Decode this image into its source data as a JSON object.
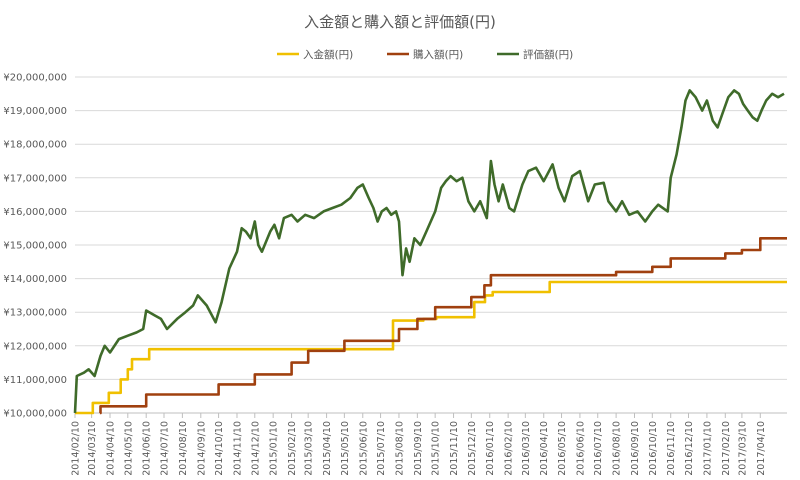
{
  "chart_data": {
    "type": "line",
    "title": "入金額と購入額と評価額(円)",
    "legend_position": "top",
    "grid": true,
    "ylim": [
      10000000,
      20000000
    ],
    "yticks": [
      {
        "value": 10000000,
        "label": "¥10,000,000"
      },
      {
        "value": 11000000,
        "label": "¥11,000,000"
      },
      {
        "value": 12000000,
        "label": "¥12,000,000"
      },
      {
        "value": 13000000,
        "label": "¥13,000,000"
      },
      {
        "value": 14000000,
        "label": "¥14,000,000"
      },
      {
        "value": 15000000,
        "label": "¥15,000,000"
      },
      {
        "value": 16000000,
        "label": "¥16,000,000"
      },
      {
        "value": 17000000,
        "label": "¥17,000,000"
      },
      {
        "value": 18000000,
        "label": "¥18,000,000"
      },
      {
        "value": 19000000,
        "label": "¥19,000,000"
      },
      {
        "value": 20000000,
        "label": "¥20,000,000"
      }
    ],
    "xlim": [
      "2014/02/10",
      "2017/05/25"
    ],
    "xticks": [
      "2014/02/10",
      "2014/03/10",
      "2014/04/10",
      "2014/05/10",
      "2014/06/10",
      "2014/07/10",
      "2014/08/10",
      "2014/09/10",
      "2014/10/10",
      "2014/11/10",
      "2014/12/10",
      "2015/01/10",
      "2015/02/10",
      "2015/03/10",
      "2015/04/10",
      "2015/05/10",
      "2015/06/10",
      "2015/07/10",
      "2015/08/10",
      "2015/09/10",
      "2015/10/10",
      "2015/11/10",
      "2015/12/10",
      "2016/01/10",
      "2016/02/10",
      "2016/03/10",
      "2016/04/10",
      "2016/05/10",
      "2016/06/10",
      "2016/07/10",
      "2016/08/10",
      "2016/09/10",
      "2016/10/10",
      "2016/11/10",
      "2016/12/10",
      "2017/01/10",
      "2017/02/10",
      "2017/03/10",
      "2017/04/10"
    ],
    "series": [
      {
        "name": "入金額(円)",
        "color": "#f0c000",
        "step": true,
        "points": [
          [
            "2014/02/10",
            10000000
          ],
          [
            "2014/03/12",
            10300000
          ],
          [
            "2014/04/08",
            10600000
          ],
          [
            "2014/04/28",
            11000000
          ],
          [
            "2014/05/10",
            11300000
          ],
          [
            "2014/05/17",
            11600000
          ],
          [
            "2014/06/15",
            11900000
          ],
          [
            "2015/07/31",
            12750000
          ],
          [
            "2015/09/20",
            12800000
          ],
          [
            "2015/10/12",
            12850000
          ],
          [
            "2015/12/15",
            13300000
          ],
          [
            "2016/01/02",
            13500000
          ],
          [
            "2016/01/15",
            13600000
          ],
          [
            "2016/04/20",
            13900000
          ],
          [
            "2017/05/25",
            13900000
          ]
        ]
      },
      {
        "name": "購入額(円)",
        "color": "#a0400f",
        "step": true,
        "points": [
          [
            "2014/03/24",
            10000000
          ],
          [
            "2014/03/25",
            10200000
          ],
          [
            "2014/06/10",
            10550000
          ],
          [
            "2014/10/10",
            10850000
          ],
          [
            "2014/12/10",
            11150000
          ],
          [
            "2015/02/10",
            11500000
          ],
          [
            "2015/03/10",
            11850000
          ],
          [
            "2015/05/10",
            12150000
          ],
          [
            "2015/08/10",
            12500000
          ],
          [
            "2015/09/10",
            12800000
          ],
          [
            "2015/10/10",
            13150000
          ],
          [
            "2015/12/10",
            13450000
          ],
          [
            "2016/01/01",
            13800000
          ],
          [
            "2016/01/12",
            14100000
          ],
          [
            "2016/08/10",
            14200000
          ],
          [
            "2016/10/10",
            14350000
          ],
          [
            "2016/11/10",
            14600000
          ],
          [
            "2017/02/10",
            14750000
          ],
          [
            "2017/03/10",
            14850000
          ],
          [
            "2017/04/10",
            15200000
          ],
          [
            "2017/05/25",
            15200000
          ]
        ]
      },
      {
        "name": "評価額(円)",
        "color": "#3f6b2a",
        "step": false,
        "points": [
          [
            "2014/02/10",
            10000000
          ],
          [
            "2014/02/13",
            11100000
          ],
          [
            "2014/02/25",
            11200000
          ],
          [
            "2014/03/05",
            11300000
          ],
          [
            "2014/03/15",
            11100000
          ],
          [
            "2014/03/25",
            11700000
          ],
          [
            "2014/04/01",
            12000000
          ],
          [
            "2014/04/10",
            11800000
          ],
          [
            "2014/04/25",
            12200000
          ],
          [
            "2014/05/10",
            12300000
          ],
          [
            "2014/05/25",
            12400000
          ],
          [
            "2014/06/05",
            12500000
          ],
          [
            "2014/06/10",
            13050000
          ],
          [
            "2014/06/25",
            12900000
          ],
          [
            "2014/07/05",
            12800000
          ],
          [
            "2014/07/15",
            12500000
          ],
          [
            "2014/08/01",
            12800000
          ],
          [
            "2014/08/15",
            13000000
          ],
          [
            "2014/08/28",
            13200000
          ],
          [
            "2014/09/05",
            13500000
          ],
          [
            "2014/09/20",
            13200000
          ],
          [
            "2014/10/05",
            12700000
          ],
          [
            "2014/10/15",
            13300000
          ],
          [
            "2014/10/28",
            14300000
          ],
          [
            "2014/11/10",
            14800000
          ],
          [
            "2014/11/18",
            15500000
          ],
          [
            "2014/11/25",
            15400000
          ],
          [
            "2014/12/03",
            15200000
          ],
          [
            "2014/12/10",
            15700000
          ],
          [
            "2014/12/16",
            15000000
          ],
          [
            "2014/12/22",
            14800000
          ],
          [
            "2015/01/05",
            15400000
          ],
          [
            "2015/01/12",
            15600000
          ],
          [
            "2015/01/20",
            15200000
          ],
          [
            "2015/01/28",
            15800000
          ],
          [
            "2015/02/10",
            15900000
          ],
          [
            "2015/02/20",
            15700000
          ],
          [
            "2015/03/05",
            15900000
          ],
          [
            "2015/03/20",
            15800000
          ],
          [
            "2015/04/05",
            16000000
          ],
          [
            "2015/04/20",
            16100000
          ],
          [
            "2015/05/05",
            16200000
          ],
          [
            "2015/05/20",
            16400000
          ],
          [
            "2015/06/01",
            16700000
          ],
          [
            "2015/06/10",
            16800000
          ],
          [
            "2015/06/20",
            16400000
          ],
          [
            "2015/06/28",
            16100000
          ],
          [
            "2015/07/05",
            15700000
          ],
          [
            "2015/07/12",
            16000000
          ],
          [
            "2015/07/20",
            16100000
          ],
          [
            "2015/07/28",
            15900000
          ],
          [
            "2015/08/05",
            16000000
          ],
          [
            "2015/08/10",
            15700000
          ],
          [
            "2015/08/16",
            14100000
          ],
          [
            "2015/08/22",
            14900000
          ],
          [
            "2015/08/28",
            14500000
          ],
          [
            "2015/09/05",
            15200000
          ],
          [
            "2015/09/15",
            15000000
          ],
          [
            "2015/09/25",
            15400000
          ],
          [
            "2015/10/10",
            16000000
          ],
          [
            "2015/10/20",
            16700000
          ],
          [
            "2015/10/28",
            16900000
          ],
          [
            "2015/11/05",
            17050000
          ],
          [
            "2015/11/15",
            16900000
          ],
          [
            "2015/11/25",
            17000000
          ],
          [
            "2015/12/05",
            16300000
          ],
          [
            "2015/12/15",
            16000000
          ],
          [
            "2015/12/25",
            16300000
          ],
          [
            "2016/01/05",
            15800000
          ],
          [
            "2016/01/12",
            17500000
          ],
          [
            "2016/01/18",
            16800000
          ],
          [
            "2016/01/25",
            16300000
          ],
          [
            "2016/02/01",
            16800000
          ],
          [
            "2016/02/12",
            16100000
          ],
          [
            "2016/02/20",
            16000000
          ],
          [
            "2016/03/05",
            16800000
          ],
          [
            "2016/03/15",
            17200000
          ],
          [
            "2016/03/28",
            17300000
          ],
          [
            "2016/04/10",
            16900000
          ],
          [
            "2016/04/25",
            17400000
          ],
          [
            "2016/05/05",
            16700000
          ],
          [
            "2016/05/15",
            16300000
          ],
          [
            "2016/05/28",
            17050000
          ],
          [
            "2016/06/10",
            17200000
          ],
          [
            "2016/06/24",
            16300000
          ],
          [
            "2016/07/05",
            16800000
          ],
          [
            "2016/07/20",
            16850000
          ],
          [
            "2016/07/28",
            16300000
          ],
          [
            "2016/08/10",
            16000000
          ],
          [
            "2016/08/20",
            16300000
          ],
          [
            "2016/09/01",
            15900000
          ],
          [
            "2016/09/15",
            16000000
          ],
          [
            "2016/09/28",
            15700000
          ],
          [
            "2016/10/10",
            16000000
          ],
          [
            "2016/10/20",
            16200000
          ],
          [
            "2016/11/05",
            16000000
          ],
          [
            "2016/11/10",
            17000000
          ],
          [
            "2016/11/20",
            17700000
          ],
          [
            "2016/11/28",
            18500000
          ],
          [
            "2016/12/05",
            19300000
          ],
          [
            "2016/12/12",
            19600000
          ],
          [
            "2016/12/22",
            19400000
          ],
          [
            "2017/01/02",
            19000000
          ],
          [
            "2017/01/10",
            19300000
          ],
          [
            "2017/01/20",
            18700000
          ],
          [
            "2017/01/28",
            18500000
          ],
          [
            "2017/02/05",
            18900000
          ],
          [
            "2017/02/15",
            19400000
          ],
          [
            "2017/02/25",
            19600000
          ],
          [
            "2017/03/05",
            19500000
          ],
          [
            "2017/03/12",
            19200000
          ],
          [
            "2017/03/20",
            19000000
          ],
          [
            "2017/03/28",
            18800000
          ],
          [
            "2017/04/05",
            18700000
          ],
          [
            "2017/04/12",
            19000000
          ],
          [
            "2017/04/20",
            19300000
          ],
          [
            "2017/04/30",
            19500000
          ],
          [
            "2017/05/10",
            19400000
          ],
          [
            "2017/05/20",
            19500000
          ]
        ]
      }
    ]
  }
}
